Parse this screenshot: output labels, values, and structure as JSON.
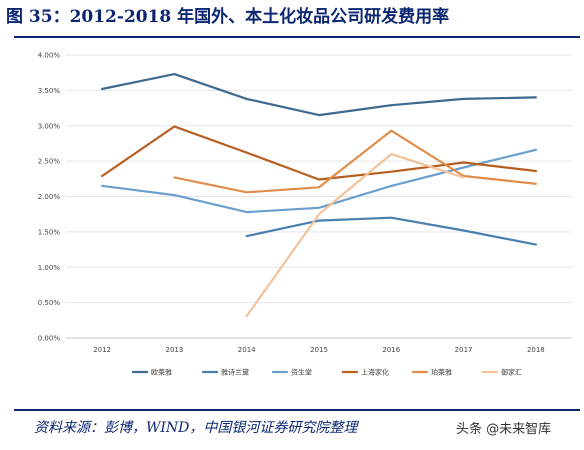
{
  "title": "图 35：2012-2018 年国外、本土化妆品公司研发费用率",
  "source": "资料来源：彭博，WIND，中国银河证券研究院整理",
  "watermark": "头条 @未来智库",
  "colors": {
    "brand": "#0c2672"
  },
  "chart_data": {
    "type": "line",
    "title": "",
    "xlabel": "",
    "ylabel": "",
    "categories": [
      "2012",
      "2013",
      "2014",
      "2015",
      "2016",
      "2017",
      "2018"
    ],
    "ylim": [
      0,
      0.04
    ],
    "y_ticks": [
      "0.00%",
      "0.50%",
      "1.00%",
      "1.50%",
      "2.00%",
      "2.50%",
      "3.00%",
      "3.50%",
      "4.00%"
    ],
    "y_tick_values": [
      0,
      0.005,
      0.01,
      0.015,
      0.02,
      0.025,
      0.03,
      0.035,
      0.04
    ],
    "grid": "horizontal",
    "legend_position": "bottom",
    "series": [
      {
        "name": "欧莱雅",
        "color": "#3f6a8f",
        "values": [
          0.0352,
          0.0373,
          0.0338,
          0.0315,
          0.0329,
          0.0338,
          0.034
        ]
      },
      {
        "name": "雅诗兰黛",
        "color": "#4a7fad",
        "values": [
          null,
          null,
          0.0144,
          0.0166,
          0.017,
          0.0152,
          0.0132
        ]
      },
      {
        "name": "资生堂",
        "color": "#6a9fce",
        "values": [
          0.0215,
          0.0202,
          0.0178,
          0.0184,
          0.0215,
          0.0241,
          0.0266
        ]
      },
      {
        "name": "上海家化",
        "color": "#b85e1f",
        "values": [
          0.0229,
          0.0299,
          0.0262,
          0.0224,
          0.0235,
          0.0248,
          0.0236
        ]
      },
      {
        "name": "珀莱雅",
        "color": "#e08d4a",
        "values": [
          null,
          0.0227,
          0.0206,
          0.0213,
          0.0293,
          0.0229,
          0.0218
        ]
      },
      {
        "name": "御家汇",
        "color": "#f3c29a",
        "values": [
          null,
          null,
          0.0031,
          0.0175,
          0.026,
          0.0227,
          null
        ]
      }
    ]
  }
}
